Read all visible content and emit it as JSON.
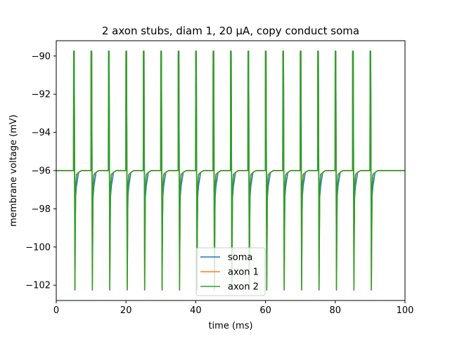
{
  "chart_data": {
    "type": "line",
    "title": "2 axon stubs, diam 1, 20 µA, copy conduct soma",
    "xlabel": "time (ms)",
    "ylabel": "membrane voltage (mV)",
    "xlim": [
      0,
      100
    ],
    "ylim": [
      -102.8,
      -89.2
    ],
    "xticks": [
      0,
      20,
      40,
      60,
      80,
      100
    ],
    "xtick_labels": [
      "0",
      "20",
      "40",
      "60",
      "80",
      "100"
    ],
    "yticks": [
      -90,
      -92,
      -94,
      -96,
      -98,
      -100,
      -102
    ],
    "ytick_labels": [
      "−90",
      "−92",
      "−94",
      "−96",
      "−98",
      "−100",
      "−102"
    ],
    "baseline": -96.0,
    "spike_times_ms": [
      5,
      10,
      15,
      20,
      25,
      30,
      35,
      40,
      45,
      50,
      55,
      60,
      65,
      70,
      75,
      80,
      85,
      90
    ],
    "series": [
      {
        "name": "soma",
        "color": "#1f77b4",
        "peak": -89.75,
        "trough": -100.4,
        "dip": -96.8
      },
      {
        "name": "axon 1",
        "color": "#ff7f0e",
        "peak": -89.75,
        "trough": -102.25,
        "dip": -96.25
      },
      {
        "name": "axon 2",
        "color": "#2ca02c",
        "peak": -89.75,
        "trough": -102.25,
        "dip": -96.2
      }
    ],
    "legend": {
      "placement": "lower-center"
    },
    "grid": false
  }
}
